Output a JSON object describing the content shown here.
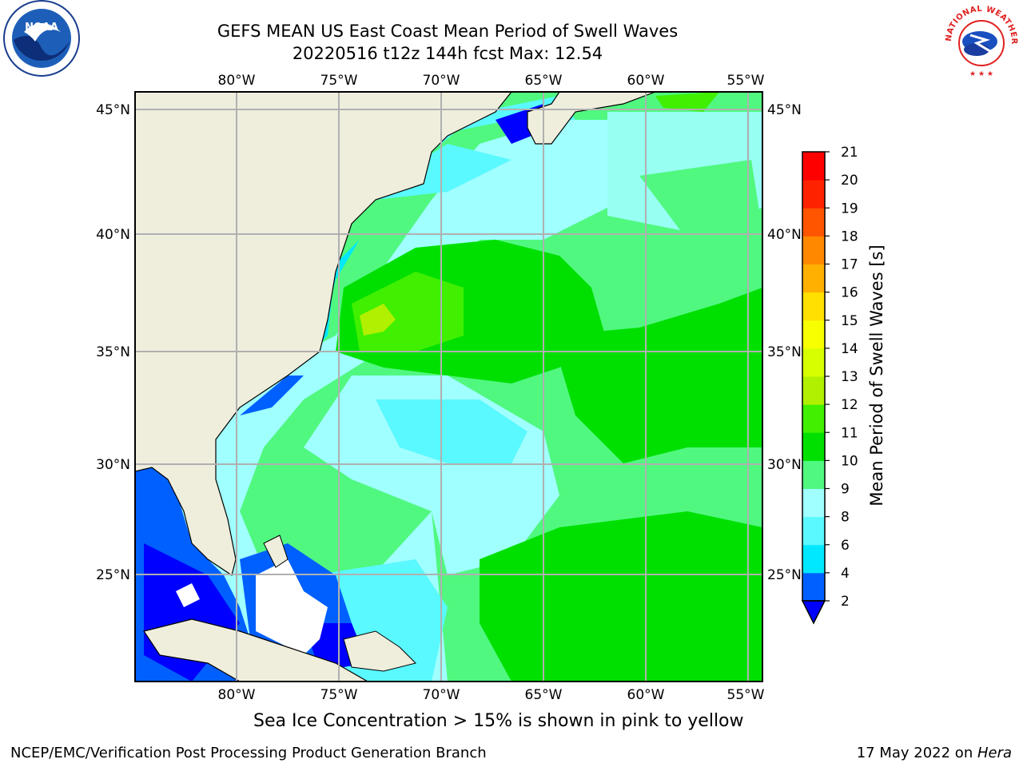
{
  "title": {
    "line1": "GEFS MEAN US East Coast Mean Period of Swell Waves",
    "line2": "20220516 t12z 144h fcst   Max: 12.54"
  },
  "map": {
    "lon_ticks": [
      "80°W",
      "75°W",
      "70°W",
      "65°W",
      "60°W",
      "55°W"
    ],
    "lat_ticks": [
      "45°N",
      "40°N",
      "35°N",
      "30°N",
      "25°N"
    ],
    "land_color": "#efeedd",
    "no_data_color": "#ffffff",
    "grid_color": "#b0b0b0"
  },
  "colorbar": {
    "label": "Mean Period of Swell Waves [s]",
    "levels": [
      "2",
      "4",
      "6",
      "8",
      "9",
      "10",
      "11",
      "12",
      "13",
      "14",
      "15",
      "16",
      "17",
      "18",
      "19",
      "20",
      "21"
    ],
    "colors": [
      "#0060ff",
      "#00e8ff",
      "#5af8ff",
      "#a0ffff",
      "#50f880",
      "#00e000",
      "#40f000",
      "#b0f000",
      "#d8ff00",
      "#f8ff00",
      "#ffe000",
      "#ffb000",
      "#ff8800",
      "#ff5500",
      "#ff2200",
      "#ff0000"
    ],
    "under_color": "#0000ff"
  },
  "footer": {
    "note": "Sea Ice Concentration > 15% is shown in pink to yellow",
    "credit_left": "NCEP/EMC/Verification Post Processing Product Generation Branch",
    "credit_right_date": "17 May 2022 on ",
    "credit_right_host": "Hera"
  },
  "logos": {
    "left": "NOAA",
    "right_text": "NATIONAL WEATHER SERVICE"
  }
}
